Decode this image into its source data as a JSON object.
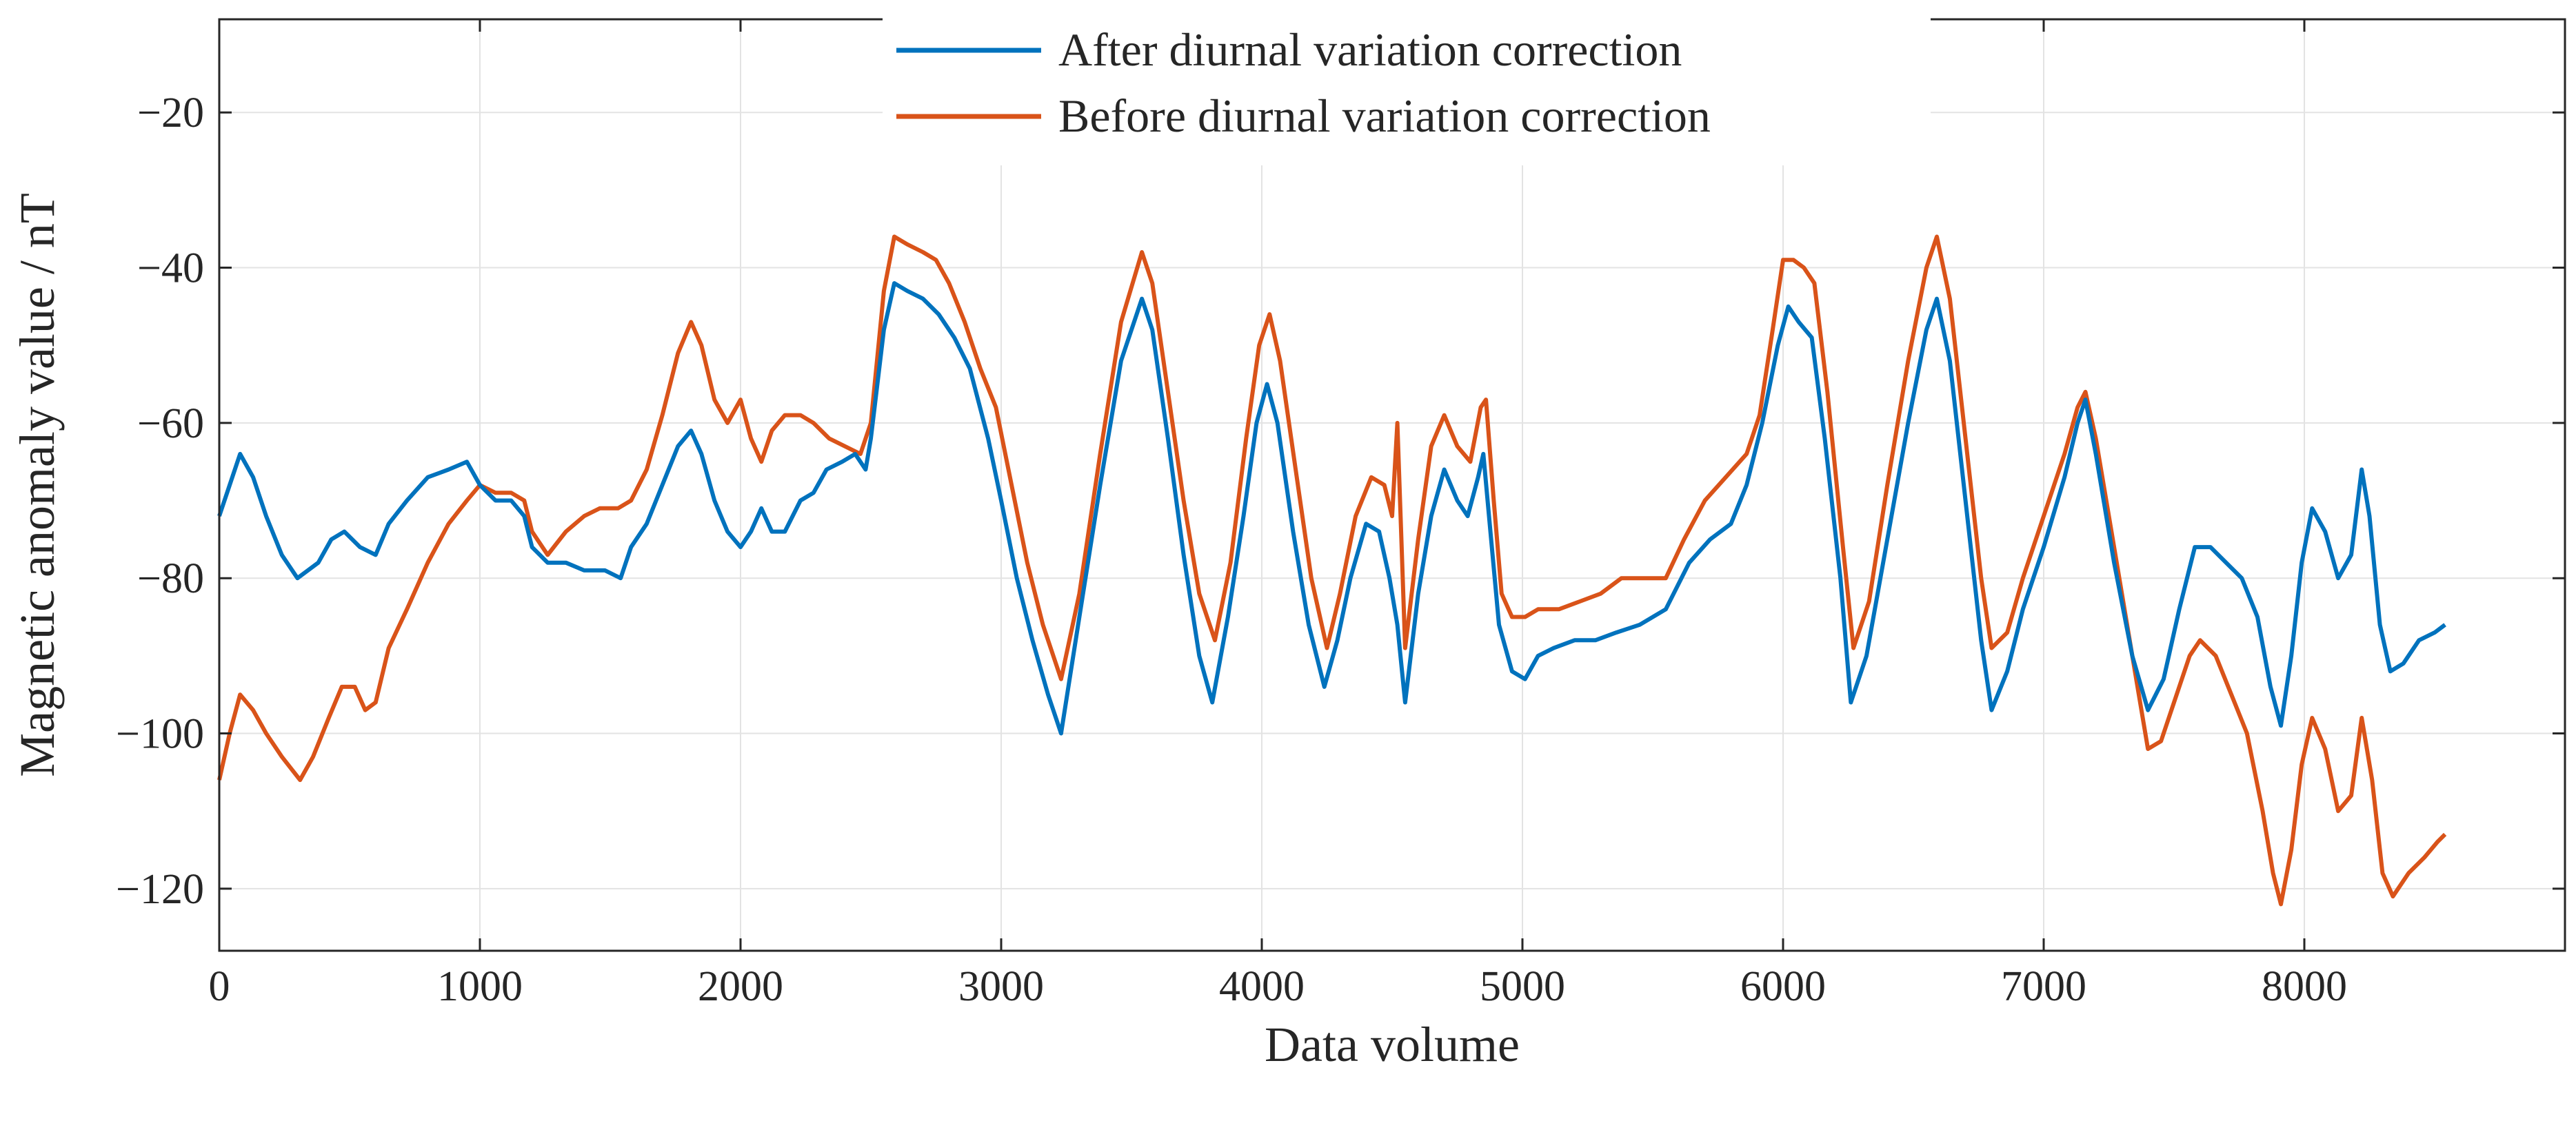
{
  "chart_data": {
    "type": "line",
    "title": "",
    "xlabel": "Data volume",
    "ylabel": "Magnetic anomaly value / nT",
    "xlim": [
      0,
      9000
    ],
    "ylim": [
      -128,
      -8
    ],
    "xticks": [
      0,
      1000,
      2000,
      3000,
      4000,
      5000,
      6000,
      7000,
      8000
    ],
    "yticks": [
      -120,
      -100,
      -80,
      -60,
      -40,
      -20
    ],
    "xtick_labels": [
      "0",
      "1000",
      "2000",
      "3000",
      "4000",
      "5000",
      "6000",
      "7000",
      "8000"
    ],
    "ytick_labels": [
      "−120",
      "−100",
      "−80",
      "−60",
      "−40",
      "−20"
    ],
    "grid": true,
    "legend_position": "top-center",
    "series": [
      {
        "name": "After diurnal variation correction",
        "color": "#0072BD",
        "points": [
          [
            0,
            -72
          ],
          [
            40,
            -68
          ],
          [
            80,
            -64
          ],
          [
            130,
            -67
          ],
          [
            180,
            -72
          ],
          [
            240,
            -77
          ],
          [
            300,
            -80
          ],
          [
            380,
            -78
          ],
          [
            430,
            -75
          ],
          [
            480,
            -74
          ],
          [
            540,
            -76
          ],
          [
            600,
            -77
          ],
          [
            650,
            -73
          ],
          [
            720,
            -70
          ],
          [
            800,
            -67
          ],
          [
            880,
            -66
          ],
          [
            950,
            -65
          ],
          [
            1000,
            -68
          ],
          [
            1060,
            -70
          ],
          [
            1120,
            -70
          ],
          [
            1170,
            -72
          ],
          [
            1200,
            -76
          ],
          [
            1260,
            -78
          ],
          [
            1330,
            -78
          ],
          [
            1400,
            -79
          ],
          [
            1480,
            -79
          ],
          [
            1540,
            -80
          ],
          [
            1580,
            -76
          ],
          [
            1640,
            -73
          ],
          [
            1700,
            -68
          ],
          [
            1760,
            -63
          ],
          [
            1810,
            -61
          ],
          [
            1850,
            -64
          ],
          [
            1900,
            -70
          ],
          [
            1950,
            -74
          ],
          [
            2000,
            -76
          ],
          [
            2040,
            -74
          ],
          [
            2080,
            -71
          ],
          [
            2120,
            -74
          ],
          [
            2170,
            -74
          ],
          [
            2230,
            -70
          ],
          [
            2280,
            -69
          ],
          [
            2330,
            -66
          ],
          [
            2390,
            -65
          ],
          [
            2440,
            -64
          ],
          [
            2480,
            -66
          ],
          [
            2500,
            -62
          ],
          [
            2550,
            -48
          ],
          [
            2590,
            -42
          ],
          [
            2640,
            -43
          ],
          [
            2700,
            -44
          ],
          [
            2760,
            -46
          ],
          [
            2820,
            -49
          ],
          [
            2880,
            -53
          ],
          [
            2950,
            -62
          ],
          [
            3000,
            -70
          ],
          [
            3060,
            -80
          ],
          [
            3120,
            -88
          ],
          [
            3180,
            -95
          ],
          [
            3230,
            -100
          ],
          [
            3300,
            -85
          ],
          [
            3380,
            -68
          ],
          [
            3460,
            -52
          ],
          [
            3540,
            -44
          ],
          [
            3580,
            -48
          ],
          [
            3640,
            -62
          ],
          [
            3700,
            -77
          ],
          [
            3760,
            -90
          ],
          [
            3810,
            -96
          ],
          [
            3870,
            -85
          ],
          [
            3930,
            -72
          ],
          [
            3980,
            -60
          ],
          [
            4020,
            -55
          ],
          [
            4060,
            -60
          ],
          [
            4120,
            -74
          ],
          [
            4180,
            -86
          ],
          [
            4240,
            -94
          ],
          [
            4290,
            -88
          ],
          [
            4340,
            -80
          ],
          [
            4400,
            -73
          ],
          [
            4450,
            -74
          ],
          [
            4490,
            -80
          ],
          [
            4520,
            -86
          ],
          [
            4550,
            -96
          ],
          [
            4600,
            -82
          ],
          [
            4650,
            -72
          ],
          [
            4700,
            -66
          ],
          [
            4750,
            -70
          ],
          [
            4790,
            -72
          ],
          [
            4830,
            -67
          ],
          [
            4850,
            -64
          ],
          [
            4880,
            -75
          ],
          [
            4910,
            -86
          ],
          [
            4960,
            -92
          ],
          [
            5010,
            -93
          ],
          [
            5060,
            -90
          ],
          [
            5120,
            -89
          ],
          [
            5200,
            -88
          ],
          [
            5280,
            -88
          ],
          [
            5360,
            -87
          ],
          [
            5450,
            -86
          ],
          [
            5550,
            -84
          ],
          [
            5640,
            -78
          ],
          [
            5720,
            -75
          ],
          [
            5800,
            -73
          ],
          [
            5860,
            -68
          ],
          [
            5920,
            -60
          ],
          [
            5980,
            -50
          ],
          [
            6020,
            -45
          ],
          [
            6060,
            -47
          ],
          [
            6110,
            -49
          ],
          [
            6160,
            -62
          ],
          [
            6220,
            -80
          ],
          [
            6260,
            -96
          ],
          [
            6320,
            -90
          ],
          [
            6400,
            -75
          ],
          [
            6480,
            -60
          ],
          [
            6550,
            -48
          ],
          [
            6590,
            -44
          ],
          [
            6640,
            -52
          ],
          [
            6700,
            -70
          ],
          [
            6760,
            -88
          ],
          [
            6800,
            -97
          ],
          [
            6860,
            -92
          ],
          [
            6920,
            -84
          ],
          [
            7000,
            -76
          ],
          [
            7080,
            -67
          ],
          [
            7130,
            -60
          ],
          [
            7160,
            -57
          ],
          [
            7200,
            -64
          ],
          [
            7270,
            -78
          ],
          [
            7340,
            -90
          ],
          [
            7400,
            -97
          ],
          [
            7460,
            -93
          ],
          [
            7520,
            -84
          ],
          [
            7580,
            -76
          ],
          [
            7640,
            -76
          ],
          [
            7700,
            -78
          ],
          [
            7760,
            -80
          ],
          [
            7820,
            -85
          ],
          [
            7870,
            -94
          ],
          [
            7910,
            -99
          ],
          [
            7950,
            -90
          ],
          [
            7990,
            -78
          ],
          [
            8030,
            -71
          ],
          [
            8080,
            -74
          ],
          [
            8130,
            -80
          ],
          [
            8180,
            -77
          ],
          [
            8220,
            -66
          ],
          [
            8250,
            -72
          ],
          [
            8290,
            -86
          ],
          [
            8330,
            -92
          ],
          [
            8380,
            -91
          ],
          [
            8440,
            -88
          ],
          [
            8500,
            -87
          ],
          [
            8540,
            -86
          ]
        ]
      },
      {
        "name": "Before diurnal variation correction",
        "color": "#D95319",
        "points": [
          [
            0,
            -106
          ],
          [
            40,
            -100
          ],
          [
            80,
            -95
          ],
          [
            130,
            -97
          ],
          [
            180,
            -100
          ],
          [
            240,
            -103
          ],
          [
            310,
            -106
          ],
          [
            360,
            -103
          ],
          [
            420,
            -98
          ],
          [
            470,
            -94
          ],
          [
            520,
            -94
          ],
          [
            560,
            -97
          ],
          [
            600,
            -96
          ],
          [
            650,
            -89
          ],
          [
            720,
            -84
          ],
          [
            800,
            -78
          ],
          [
            880,
            -73
          ],
          [
            950,
            -70
          ],
          [
            1000,
            -68
          ],
          [
            1060,
            -69
          ],
          [
            1120,
            -69
          ],
          [
            1170,
            -70
          ],
          [
            1200,
            -74
          ],
          [
            1260,
            -77
          ],
          [
            1330,
            -74
          ],
          [
            1400,
            -72
          ],
          [
            1460,
            -71
          ],
          [
            1530,
            -71
          ],
          [
            1580,
            -70
          ],
          [
            1640,
            -66
          ],
          [
            1700,
            -59
          ],
          [
            1760,
            -51
          ],
          [
            1810,
            -47
          ],
          [
            1850,
            -50
          ],
          [
            1900,
            -57
          ],
          [
            1950,
            -60
          ],
          [
            2000,
            -57
          ],
          [
            2040,
            -62
          ],
          [
            2080,
            -65
          ],
          [
            2120,
            -61
          ],
          [
            2170,
            -59
          ],
          [
            2230,
            -59
          ],
          [
            2280,
            -60
          ],
          [
            2340,
            -62
          ],
          [
            2400,
            -63
          ],
          [
            2460,
            -64
          ],
          [
            2500,
            -60
          ],
          [
            2550,
            -43
          ],
          [
            2590,
            -36
          ],
          [
            2640,
            -37
          ],
          [
            2700,
            -38
          ],
          [
            2750,
            -39
          ],
          [
            2800,
            -42
          ],
          [
            2860,
            -47
          ],
          [
            2920,
            -53
          ],
          [
            2980,
            -58
          ],
          [
            3040,
            -68
          ],
          [
            3100,
            -78
          ],
          [
            3160,
            -86
          ],
          [
            3230,
            -93
          ],
          [
            3300,
            -82
          ],
          [
            3380,
            -64
          ],
          [
            3460,
            -47
          ],
          [
            3540,
            -38
          ],
          [
            3580,
            -42
          ],
          [
            3640,
            -56
          ],
          [
            3700,
            -70
          ],
          [
            3760,
            -82
          ],
          [
            3820,
            -88
          ],
          [
            3880,
            -78
          ],
          [
            3940,
            -62
          ],
          [
            3990,
            -50
          ],
          [
            4030,
            -46
          ],
          [
            4070,
            -52
          ],
          [
            4130,
            -66
          ],
          [
            4190,
            -80
          ],
          [
            4250,
            -89
          ],
          [
            4300,
            -82
          ],
          [
            4360,
            -72
          ],
          [
            4420,
            -67
          ],
          [
            4470,
            -68
          ],
          [
            4500,
            -72
          ],
          [
            4520,
            -60
          ],
          [
            4550,
            -89
          ],
          [
            4600,
            -75
          ],
          [
            4650,
            -63
          ],
          [
            4700,
            -59
          ],
          [
            4750,
            -63
          ],
          [
            4800,
            -65
          ],
          [
            4840,
            -58
          ],
          [
            4860,
            -57
          ],
          [
            4890,
            -70
          ],
          [
            4920,
            -82
          ],
          [
            4960,
            -85
          ],
          [
            5010,
            -85
          ],
          [
            5060,
            -84
          ],
          [
            5140,
            -84
          ],
          [
            5220,
            -83
          ],
          [
            5300,
            -82
          ],
          [
            5380,
            -80
          ],
          [
            5450,
            -80
          ],
          [
            5550,
            -80
          ],
          [
            5620,
            -75
          ],
          [
            5700,
            -70
          ],
          [
            5780,
            -67
          ],
          [
            5860,
            -64
          ],
          [
            5910,
            -59
          ],
          [
            5960,
            -48
          ],
          [
            6000,
            -39
          ],
          [
            6040,
            -39
          ],
          [
            6080,
            -40
          ],
          [
            6120,
            -42
          ],
          [
            6170,
            -56
          ],
          [
            6230,
            -76
          ],
          [
            6270,
            -89
          ],
          [
            6330,
            -83
          ],
          [
            6400,
            -68
          ],
          [
            6480,
            -52
          ],
          [
            6550,
            -40
          ],
          [
            6590,
            -36
          ],
          [
            6640,
            -44
          ],
          [
            6700,
            -62
          ],
          [
            6760,
            -80
          ],
          [
            6800,
            -89
          ],
          [
            6860,
            -87
          ],
          [
            6920,
            -80
          ],
          [
            7000,
            -72
          ],
          [
            7080,
            -64
          ],
          [
            7130,
            -58
          ],
          [
            7160,
            -56
          ],
          [
            7200,
            -62
          ],
          [
            7270,
            -76
          ],
          [
            7340,
            -90
          ],
          [
            7400,
            -102
          ],
          [
            7450,
            -101
          ],
          [
            7500,
            -96
          ],
          [
            7560,
            -90
          ],
          [
            7600,
            -88
          ],
          [
            7660,
            -90
          ],
          [
            7720,
            -95
          ],
          [
            7780,
            -100
          ],
          [
            7840,
            -110
          ],
          [
            7880,
            -118
          ],
          [
            7910,
            -122
          ],
          [
            7950,
            -115
          ],
          [
            7990,
            -104
          ],
          [
            8030,
            -98
          ],
          [
            8080,
            -102
          ],
          [
            8130,
            -110
          ],
          [
            8180,
            -108
          ],
          [
            8220,
            -98
          ],
          [
            8260,
            -106
          ],
          [
            8300,
            -118
          ],
          [
            8340,
            -121
          ],
          [
            8400,
            -118
          ],
          [
            8460,
            -116
          ],
          [
            8510,
            -114
          ],
          [
            8540,
            -113
          ]
        ]
      }
    ]
  }
}
